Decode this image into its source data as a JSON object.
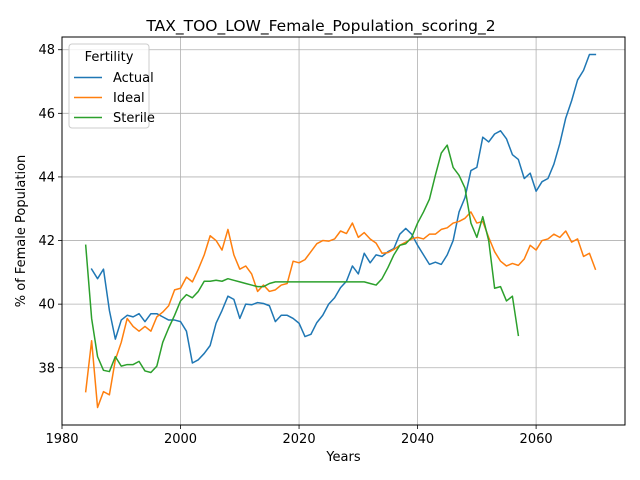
{
  "chart_data": {
    "type": "line",
    "title": "TAX_TOO_LOW_Female_Population_scoring_2",
    "xlabel": "Years",
    "ylabel": "% of Female Population",
    "xlim": [
      1980,
      2075
    ],
    "ylim": [
      36.2,
      48.4
    ],
    "xticks": [
      1980,
      2000,
      2020,
      2040,
      2060
    ],
    "yticks": [
      38,
      40,
      42,
      44,
      46,
      48
    ],
    "grid": true,
    "legend": {
      "title": "Fertility",
      "placement": "top-left"
    },
    "series": [
      {
        "name": "Actual",
        "color": "#1f77b4",
        "x": [
          1985,
          1986,
          1987,
          1988,
          1989,
          1990,
          1991,
          1992,
          1993,
          1994,
          1995,
          1996,
          1997,
          1998,
          1999,
          2000,
          2001,
          2002,
          2003,
          2004,
          2005,
          2006,
          2007,
          2008,
          2009,
          2010,
          2011,
          2012,
          2013,
          2014,
          2015,
          2016,
          2017,
          2018,
          2019,
          2020,
          2021,
          2022,
          2023,
          2024,
          2025,
          2026,
          2027,
          2028,
          2029,
          2030,
          2031,
          2032,
          2033,
          2034,
          2035,
          2036,
          2037,
          2038,
          2039,
          2040,
          2041,
          2042,
          2043,
          2044,
          2045,
          2046,
          2047,
          2048,
          2049,
          2050,
          2051,
          2052,
          2053,
          2054,
          2055,
          2056,
          2057,
          2058,
          2059,
          2060,
          2061,
          2062,
          2063,
          2064,
          2065,
          2066,
          2067,
          2068,
          2069,
          2070
        ],
        "values": [
          41.1,
          40.8,
          41.1,
          39.8,
          38.9,
          39.5,
          39.65,
          39.6,
          39.7,
          39.45,
          39.7,
          39.7,
          39.6,
          39.5,
          39.5,
          39.45,
          39.15,
          38.15,
          38.25,
          38.45,
          38.7,
          39.4,
          39.8,
          40.25,
          40.15,
          39.55,
          40.0,
          39.98,
          40.05,
          40.02,
          39.95,
          39.45,
          39.65,
          39.65,
          39.55,
          39.4,
          38.98,
          39.05,
          39.42,
          39.65,
          40.0,
          40.2,
          40.52,
          40.72,
          41.2,
          40.95,
          41.6,
          41.3,
          41.55,
          41.5,
          41.65,
          41.75,
          42.2,
          42.38,
          42.2,
          41.85,
          41.55,
          41.25,
          41.32,
          41.25,
          41.55,
          42.0,
          42.9,
          43.35,
          44.2,
          44.3,
          45.25,
          45.1,
          45.35,
          45.45,
          45.2,
          44.7,
          44.55,
          43.95,
          44.12,
          43.55,
          43.85,
          43.95,
          44.4,
          45.05,
          45.85,
          46.4,
          47.05,
          47.35,
          47.85,
          47.85
        ]
      },
      {
        "name": "Ideal",
        "color": "#ff7f0e",
        "x": [
          1984,
          1985,
          1986,
          1987,
          1988,
          1989,
          1990,
          1991,
          1992,
          1993,
          1994,
          1995,
          1996,
          1997,
          1998,
          1999,
          2000,
          2001,
          2002,
          2003,
          2004,
          2005,
          2006,
          2007,
          2008,
          2009,
          2010,
          2011,
          2012,
          2013,
          2014,
          2015,
          2016,
          2017,
          2018,
          2019,
          2020,
          2021,
          2022,
          2023,
          2024,
          2025,
          2026,
          2027,
          2028,
          2029,
          2030,
          2031,
          2032,
          2033,
          2034,
          2035,
          2036,
          2037,
          2038,
          2039,
          2040,
          2041,
          2042,
          2043,
          2044,
          2045,
          2046,
          2047,
          2048,
          2049,
          2050,
          2051,
          2052,
          2053,
          2054,
          2055,
          2056,
          2057,
          2058,
          2059,
          2060,
          2061,
          2062,
          2063,
          2064,
          2065,
          2066,
          2067,
          2068,
          2069,
          2070
        ],
        "values": [
          37.25,
          38.85,
          36.75,
          37.25,
          37.15,
          38.25,
          38.8,
          39.55,
          39.3,
          39.15,
          39.3,
          39.15,
          39.6,
          39.75,
          39.95,
          40.45,
          40.5,
          40.85,
          40.7,
          41.1,
          41.55,
          42.15,
          42.0,
          41.7,
          42.35,
          41.55,
          41.1,
          41.2,
          40.95,
          40.4,
          40.6,
          40.4,
          40.45,
          40.6,
          40.65,
          41.35,
          41.3,
          41.4,
          41.65,
          41.9,
          42.0,
          41.98,
          42.05,
          42.3,
          42.22,
          42.55,
          42.1,
          42.25,
          42.05,
          41.92,
          41.6,
          41.62,
          41.72,
          41.85,
          41.95,
          42.05,
          42.1,
          42.05,
          42.2,
          42.2,
          42.35,
          42.4,
          42.55,
          42.6,
          42.7,
          42.9,
          42.55,
          42.6,
          42.1,
          41.65,
          41.35,
          41.2,
          41.28,
          41.22,
          41.42,
          41.85,
          41.7,
          42.0,
          42.05,
          42.2,
          42.1,
          42.3,
          41.95,
          42.05,
          41.5,
          41.6,
          41.1
        ]
      },
      {
        "name": "Sterile",
        "color": "#2ca02c",
        "x": [
          1984,
          1985,
          1986,
          1987,
          1988,
          1989,
          1990,
          1991,
          1992,
          1993,
          1994,
          1995,
          1996,
          1997,
          1998,
          1999,
          2000,
          2001,
          2002,
          2003,
          2004,
          2005,
          2006,
          2007,
          2008,
          2009,
          2010,
          2011,
          2012,
          2013,
          2014,
          2015,
          2016,
          2017,
          2018,
          2019,
          2020,
          2021,
          2022,
          2023,
          2024,
          2025,
          2026,
          2027,
          2028,
          2029,
          2030,
          2031,
          2032,
          2033,
          2034,
          2035,
          2036,
          2037,
          2038,
          2039,
          2040,
          2041,
          2042,
          2043,
          2044,
          2045,
          2046,
          2047,
          2048,
          2049,
          2050,
          2051,
          2052,
          2053,
          2054,
          2055,
          2056,
          2057
        ],
        "values": [
          41.85,
          39.55,
          38.35,
          37.92,
          37.88,
          38.35,
          38.05,
          38.1,
          38.1,
          38.2,
          37.9,
          37.85,
          38.05,
          38.8,
          39.25,
          39.65,
          40.1,
          40.3,
          40.2,
          40.4,
          40.72,
          40.72,
          40.75,
          40.72,
          40.8,
          40.75,
          40.7,
          40.65,
          40.6,
          40.55,
          40.55,
          40.65,
          40.7,
          40.7,
          40.7,
          40.7,
          40.7,
          40.7,
          40.7,
          40.7,
          40.7,
          40.7,
          40.7,
          40.7,
          40.7,
          40.7,
          40.7,
          40.7,
          40.65,
          40.6,
          40.8,
          41.15,
          41.55,
          41.85,
          41.9,
          42.1,
          42.55,
          42.9,
          43.3,
          44.05,
          44.75,
          45.0,
          44.3,
          44.05,
          43.65,
          42.55,
          42.1,
          42.75,
          42.0,
          40.5,
          40.55,
          40.1,
          40.25,
          39.02
        ]
      }
    ]
  }
}
